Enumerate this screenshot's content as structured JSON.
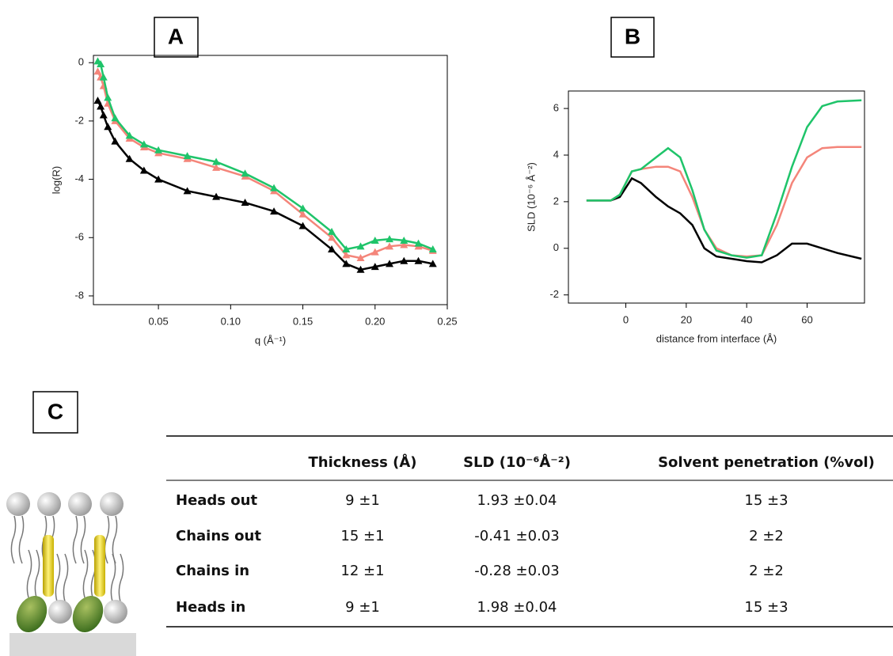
{
  "panels": [
    "A",
    "B",
    "C"
  ],
  "chart_data": [
    {
      "type": "line",
      "markers": true,
      "x_label": "q (Å⁻¹)",
      "y_label": "log(R)",
      "x": [
        0.008,
        0.01,
        0.012,
        0.015,
        0.02,
        0.03,
        0.04,
        0.05,
        0.07,
        0.09,
        0.11,
        0.13,
        0.15,
        0.17,
        0.18,
        0.19,
        0.2,
        0.21,
        0.22,
        0.23,
        0.24
      ],
      "series": [
        {
          "color": "#000000",
          "values": [
            -1.3,
            -1.5,
            -1.8,
            -2.2,
            -2.7,
            -3.3,
            -3.7,
            -4.0,
            -4.4,
            -4.6,
            -4.8,
            -5.1,
            -5.6,
            -6.4,
            -6.9,
            -7.1,
            -7.0,
            -6.9,
            -6.8,
            -6.8,
            -6.9
          ]
        },
        {
          "color": "#f4857a",
          "values": [
            -0.3,
            -0.5,
            -0.8,
            -1.4,
            -2.0,
            -2.6,
            -2.9,
            -3.1,
            -3.3,
            -3.6,
            -3.9,
            -4.4,
            -5.2,
            -6.0,
            -6.6,
            -6.7,
            -6.5,
            -6.3,
            -6.25,
            -6.3,
            -6.45
          ]
        },
        {
          "color": "#1fc46a",
          "values": [
            0.05,
            -0.05,
            -0.5,
            -1.2,
            -1.9,
            -2.5,
            -2.8,
            -3.0,
            -3.2,
            -3.4,
            -3.8,
            -4.3,
            -5.0,
            -5.8,
            -6.4,
            -6.3,
            -6.1,
            -6.05,
            -6.1,
            -6.2,
            -6.4
          ]
        }
      ],
      "xlim": [
        0.005,
        0.25
      ],
      "xticks": [
        0.05,
        {
          "value": 0.1,
          "label": "0.10"
        },
        0.15,
        {
          "value": 0.2,
          "label": "0.20"
        },
        0.25
      ],
      "ylim": [
        -8.3,
        0.25
      ],
      "yticks": [
        0,
        -2,
        -4,
        -6,
        -8
      ]
    },
    {
      "type": "line",
      "markers": false,
      "x_label": "distance from interface (Å)",
      "y_label": "SLD (10⁻⁶ Å⁻²)",
      "x": [
        -13,
        -5,
        -2,
        2,
        5,
        10,
        14,
        18,
        22,
        26,
        30,
        35,
        40,
        45,
        50,
        55,
        60,
        65,
        70,
        78
      ],
      "series": [
        {
          "color": "#000000",
          "values": [
            2.05,
            2.05,
            2.2,
            3.0,
            2.8,
            2.2,
            1.8,
            1.5,
            1.0,
            0.0,
            -0.35,
            -0.45,
            -0.55,
            -0.6,
            -0.3,
            0.2,
            0.2,
            0,
            -0.2,
            -0.45
          ]
        },
        {
          "color": "#f4857a",
          "values": [
            2.05,
            2.05,
            2.3,
            3.3,
            3.4,
            3.5,
            3.5,
            3.3,
            2.2,
            0.8,
            0,
            -0.3,
            -0.35,
            -0.3,
            1.0,
            2.8,
            3.9,
            4.3,
            4.35,
            4.35
          ]
        },
        {
          "color": "#1fc46a",
          "values": [
            2.05,
            2.05,
            2.3,
            3.3,
            3.4,
            3.9,
            4.3,
            3.9,
            2.5,
            0.8,
            -0.1,
            -0.3,
            -0.4,
            -0.3,
            1.5,
            3.5,
            5.2,
            6.1,
            6.3,
            6.35
          ]
        }
      ],
      "xlim": [
        -19,
        79
      ],
      "xticks": [
        0,
        20,
        40,
        60
      ],
      "ylim": [
        -2.35,
        6.75
      ],
      "yticks": [
        -2,
        0,
        2,
        4,
        6
      ]
    }
  ],
  "table": {
    "header": [
      "Thickness (Å)",
      "SLD (10⁻⁶Å⁻²)",
      "Solvent penetration (%vol)"
    ],
    "rows": [
      [
        "Heads out",
        "9 ±1",
        "1.93 ±0.04",
        "15 ±3"
      ],
      [
        "Chains out",
        "15 ±1",
        "-0.41 ±0.03",
        "2 ±2"
      ],
      [
        "Chains in",
        "12 ±1",
        "-0.28 ±0.03",
        "2 ±2"
      ],
      [
        "Heads in",
        "9 ±1",
        "1.98 ±0.04",
        "15 ±3"
      ]
    ]
  }
}
